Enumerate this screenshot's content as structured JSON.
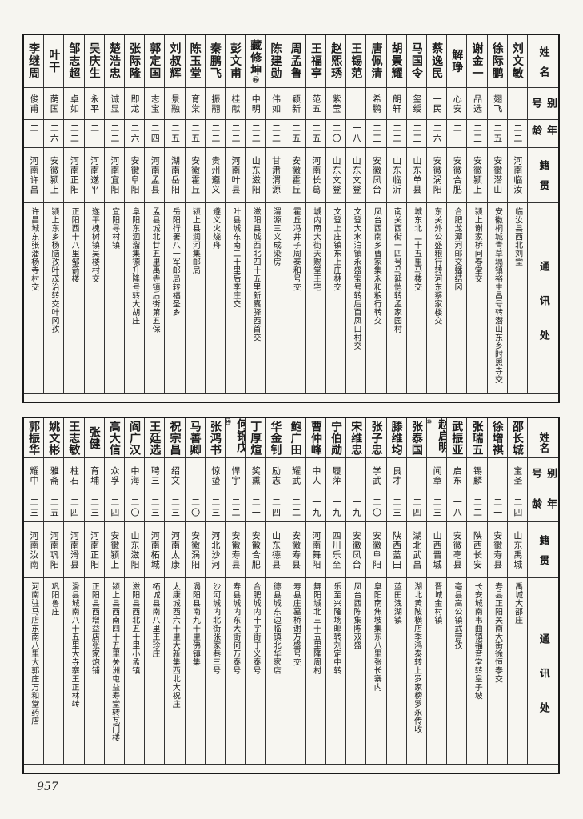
{
  "page": {
    "number": "957"
  },
  "headers": {
    "name": "姓名",
    "alias": "别号",
    "age": "年龄",
    "origin": "籍贯",
    "address": "通讯处"
  },
  "sections": [
    {
      "people": [
        {
          "name": "刘文敏",
          "mark": "",
          "alias": "",
          "age": "二二",
          "origin": "河南临汝",
          "address": "临汝县西北刘堂"
        },
        {
          "name": "徐际鹏",
          "mark": "",
          "alias": "翅飞",
          "age": "二五",
          "origin": "安徽潜山",
          "address": "安徽桐城青草塥镇裕生昌号转潜山东乡时恩寺交"
        },
        {
          "name": "谢金一",
          "mark": "",
          "alias": "品选",
          "age": "二三",
          "origin": "安徽颍上",
          "address": "颍上谢家桥问春堂交"
        },
        {
          "name": "解琤",
          "mark": "",
          "alias": "心安",
          "age": "二一",
          "origin": "安徽合肥",
          "address": "合肥龙潭河邮交蟠结冈"
        },
        {
          "name": "蔡逸民",
          "mark": "",
          "alias": "一民",
          "age": "二六",
          "origin": "安徽涡阳",
          "address": "东关外公盛粮行转河东蔡家楼交"
        },
        {
          "name": "马国令",
          "mark": "",
          "alias": "玺绶",
          "age": "二三",
          "origin": "山东单县",
          "address": "城东北二十五里马楼交"
        },
        {
          "name": "胡景耀",
          "mark": "",
          "alias": "朗轩",
          "age": "二二",
          "origin": "山东临沂",
          "address": "南关西街一四号马延恺转孟家园村"
        },
        {
          "name": "唐佩清",
          "mark": "",
          "alias": "希鹏",
          "age": "二三",
          "origin": "安徽凤台",
          "address": "凤台西南乡曹家集永和粮行转交"
        },
        {
          "name": "王锡范",
          "mark": "",
          "alias": "",
          "age": "一八",
          "origin": "山东文登",
          "address": "文登大水泊镇永盛宝号转后百凤口村交"
        },
        {
          "name": "赵熙琇",
          "mark": "",
          "alias": "紫莹",
          "age": "二〇",
          "origin": "山东文登",
          "address": "文登上庄镇东上庄林交"
        },
        {
          "name": "王福亭",
          "mark": "",
          "alias": "范五",
          "age": "二五",
          "origin": "河南长葛",
          "address": "城内南大街天赐堂王宅"
        },
        {
          "name": "周孟鲁",
          "mark": "",
          "alias": "颖新",
          "age": "二五",
          "origin": "安徽霍丘",
          "address": "霍丘冯井子周泰和号交"
        },
        {
          "name": "陈建勋",
          "mark": "",
          "alias": "伟如",
          "age": "二二",
          "origin": "甘肃渭源",
          "address": "渭源三义成染房"
        },
        {
          "name": "藏修坤",
          "mark": "⑯",
          "alias": "中明",
          "age": "二二",
          "origin": "山东滋阳",
          "address": "滋阳县城西北四十五里新嘉驿西首交"
        },
        {
          "name": "彭文甫",
          "mark": "",
          "alias": "桂献",
          "age": "二二",
          "origin": "河南叶县",
          "address": "叶县城东南二十里后李庄交"
        },
        {
          "name": "秦鹏飞",
          "mark": "",
          "alias": "振翮",
          "age": "二二",
          "origin": "贵州遵义",
          "address": "遵义火烧舟"
        },
        {
          "name": "陈玉堂",
          "mark": "",
          "alias": "育棠",
          "age": "二五",
          "origin": "安徽霍丘",
          "address": "颍上县润河集邮局"
        },
        {
          "name": "刘叔辉",
          "mark": "",
          "alias": "景融",
          "age": "二五",
          "origin": "湖南岳阳",
          "address": "岳阳行署八一军邮局转福圣乡"
        },
        {
          "name": "郭定国",
          "mark": "",
          "alias": "志宝",
          "age": "二四",
          "origin": "河南孟县",
          "address": "孟县城北廿五里禹寺镇后街第五保"
        },
        {
          "name": "张际隆",
          "mark": "",
          "alias": "即龙",
          "age": "二六",
          "origin": "安徽阜阳",
          "address": "阜阳东洄溜集德升隆号转大胡庄"
        },
        {
          "name": "楚浩忠",
          "mark": "",
          "alias": "诚显",
          "age": "二二",
          "origin": "河南宜阳",
          "address": "宜阳寻村镇"
        },
        {
          "name": "吴庆生",
          "mark": "",
          "alias": "永平",
          "age": "二一",
          "origin": "河南遂平",
          "address": "遂平槐树镇吴楼村交"
        },
        {
          "name": "邹志超",
          "mark": "",
          "alias": "卓如",
          "age": "二二",
          "origin": "河南正阳",
          "address": "正阳西十八里邹箭楼"
        },
        {
          "name": "叶干",
          "mark": "",
          "alias": "荫国",
          "age": "二六",
          "origin": "安徽颍上",
          "address": "颍上东乡杨脑孜叶茂治转交叶冈孜"
        },
        {
          "name": "李继周",
          "mark": "",
          "alias": "俊甫",
          "age": "二一",
          "origin": "河南许昌",
          "address": "许昌城东张潘杨寺村交"
        }
      ]
    },
    {
      "people": [
        {
          "name": "邵长城",
          "mark": "",
          "alias": "宝圣",
          "age": "二四",
          "origin": "山东禹城",
          "address": "禹城大邵庄"
        },
        {
          "name": "徐增祺",
          "mark": "",
          "alias": "",
          "age": "二一",
          "origin": "安徽寿县",
          "address": "寿县正阳关南大街徐恒泰交"
        },
        {
          "name": "张瑞五",
          "mark": "",
          "alias": "锡麟",
          "age": "二二",
          "origin": "陕西长安",
          "address": "长安城南韦曲镇福音堂转皇子坡"
        },
        {
          "name": "武振亚",
          "mark": "",
          "alias": "启东",
          "age": "一八",
          "origin": "安徽亳县",
          "address": "亳县高公镇武营孜"
        },
        {
          "name": "赵启明",
          "mark": "⑩",
          "alias": "闻章",
          "age": "二三",
          "origin": "山西晋城",
          "address": "晋城金村镇"
        },
        {
          "name": "张泰国",
          "mark": "",
          "alias": "",
          "age": "二四",
          "origin": "湖北武昌",
          "address": "湖北黄陂横店季鸿泰转上罗家榜罗永传收"
        },
        {
          "name": "滕维均",
          "mark": "",
          "alias": "良才",
          "age": "二三",
          "origin": "陕西蓝田",
          "address": "蓝田洩湖镇"
        },
        {
          "name": "张子忠",
          "mark": "",
          "alias": "学武",
          "age": "二〇",
          "origin": "安徽阜阳",
          "address": "阜阳南焦坡集东八里张长寨内"
        },
        {
          "name": "宋维忠",
          "mark": "",
          "alias": "",
          "age": "一九",
          "origin": "安徽凤台",
          "address": "凤台西陈集陈双盛"
        },
        {
          "name": "宁伯勋",
          "mark": "",
          "alias": "履萍",
          "age": "一九",
          "origin": "四川乐至",
          "address": "乐至兴隆场邮转刘定中转"
        },
        {
          "name": "曹仲峰",
          "mark": "",
          "alias": "中人",
          "age": "一九",
          "origin": "河南舞阳",
          "address": "舞阳城北三十五里隆周村"
        },
        {
          "name": "鲍广田",
          "mark": "",
          "alias": "耀武",
          "age": "二二",
          "origin": "安徽寿县",
          "address": "寿县庄墓桥谢万盛号交"
        },
        {
          "name": "华金钊",
          "mark": "",
          "alias": "励志",
          "age": "二四",
          "origin": "山东德县",
          "address": "德县城东边临镇北华家店"
        },
        {
          "name": "丁厚煊",
          "mark": "",
          "alias": "奖熏",
          "age": "二一",
          "origin": "安徽合肥",
          "address": "合肥城内十字街丁义泰号"
        },
        {
          "name": "何锦戊",
          "mark": "⑭",
          "alias": "悍宇",
          "age": "二二",
          "origin": "安徽寿县",
          "address": "寿县城内东大街何万泰号"
        },
        {
          "name": "张鸿书",
          "mark": "",
          "alias": "惊蛰",
          "age": "二三",
          "origin": "河北沙河",
          "address": "沙河城内北街张家巷三号"
        },
        {
          "name": "马善卿",
          "mark": "",
          "alias": "",
          "age": "二〇",
          "origin": "安徽涡阳",
          "address": "涡阳县南九十里佛镇集"
        },
        {
          "name": "祝宗昌",
          "mark": "",
          "alias": "绍文",
          "age": "二三",
          "origin": "河南太康",
          "address": "太康城西六十里大新集西北大祝庄"
        },
        {
          "name": "王廷选",
          "mark": "",
          "alias": "聘三",
          "age": "二三",
          "origin": "河南柘城",
          "address": "柘城县南八里王珍庄"
        },
        {
          "name": "阎广汉",
          "mark": "",
          "alias": "中海",
          "age": "二〇",
          "origin": "山东滋阳",
          "address": "滋阳县西北五十里小孟镇"
        },
        {
          "name": "高大信",
          "mark": "",
          "alias": "众孚",
          "age": "二四",
          "origin": "安徽颍上",
          "address": "颍上县西南四十五里关洲屯益寿堂转瓦门楼"
        },
        {
          "name": "张健",
          "mark": "",
          "alias": "育埔",
          "age": "二三",
          "origin": "河南正阳",
          "address": "正阳县西增益店张家炮铺"
        },
        {
          "name": "王志敏",
          "mark": "",
          "alias": "柱石",
          "age": "二四",
          "origin": "河南滑县",
          "address": "滑县城南八十五里大寺寨王正林转"
        },
        {
          "name": "姚文彬",
          "mark": "",
          "alias": "雅斋",
          "age": "二五",
          "origin": "河南巩阳",
          "address": "巩阳鲁庄"
        },
        {
          "name": "郭振华",
          "mark": "",
          "alias": "耀中",
          "age": "二三",
          "origin": "河南汝南",
          "address": "河南驻马店东南八里大郭庄万和堂药店"
        }
      ]
    }
  ]
}
